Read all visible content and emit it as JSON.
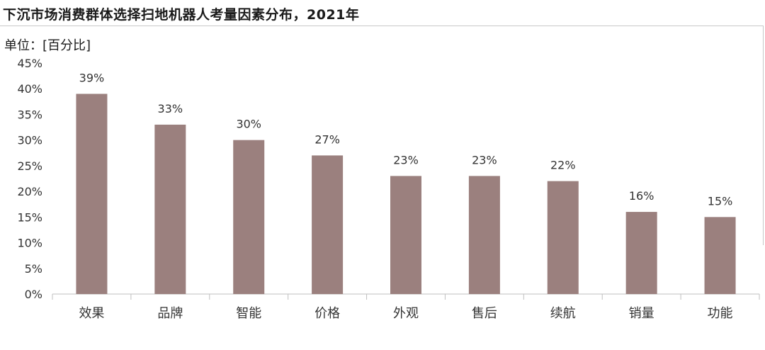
{
  "title": "下沉市场消费群体选择扫地机器人考量因素分布，2021年",
  "unit_label": "单位：[百分比]",
  "colors": {
    "bar": "#9b807e",
    "axis": "#bfbfbf",
    "text": "#333333"
  },
  "chart_data": {
    "type": "bar",
    "title": "下沉市场消费群体选择扫地机器人考量因素分布，2021年",
    "xlabel": "",
    "ylabel": "单位：[百分比]",
    "categories": [
      "效果",
      "品牌",
      "智能",
      "价格",
      "外观",
      "售后",
      "续航",
      "销量",
      "功能"
    ],
    "values": [
      39,
      33,
      30,
      27,
      23,
      23,
      22,
      16,
      15
    ],
    "value_labels": [
      "39%",
      "33%",
      "30%",
      "27%",
      "23%",
      "23%",
      "22%",
      "16%",
      "15%"
    ],
    "ylim": [
      0,
      45
    ],
    "yticks": [
      0,
      5,
      10,
      15,
      20,
      25,
      30,
      35,
      40,
      45
    ],
    "ytick_labels": [
      "0%",
      "5%",
      "10%",
      "15%",
      "20%",
      "25%",
      "30%",
      "35%",
      "40%",
      "45%"
    ],
    "grid": false,
    "legend": "none"
  }
}
